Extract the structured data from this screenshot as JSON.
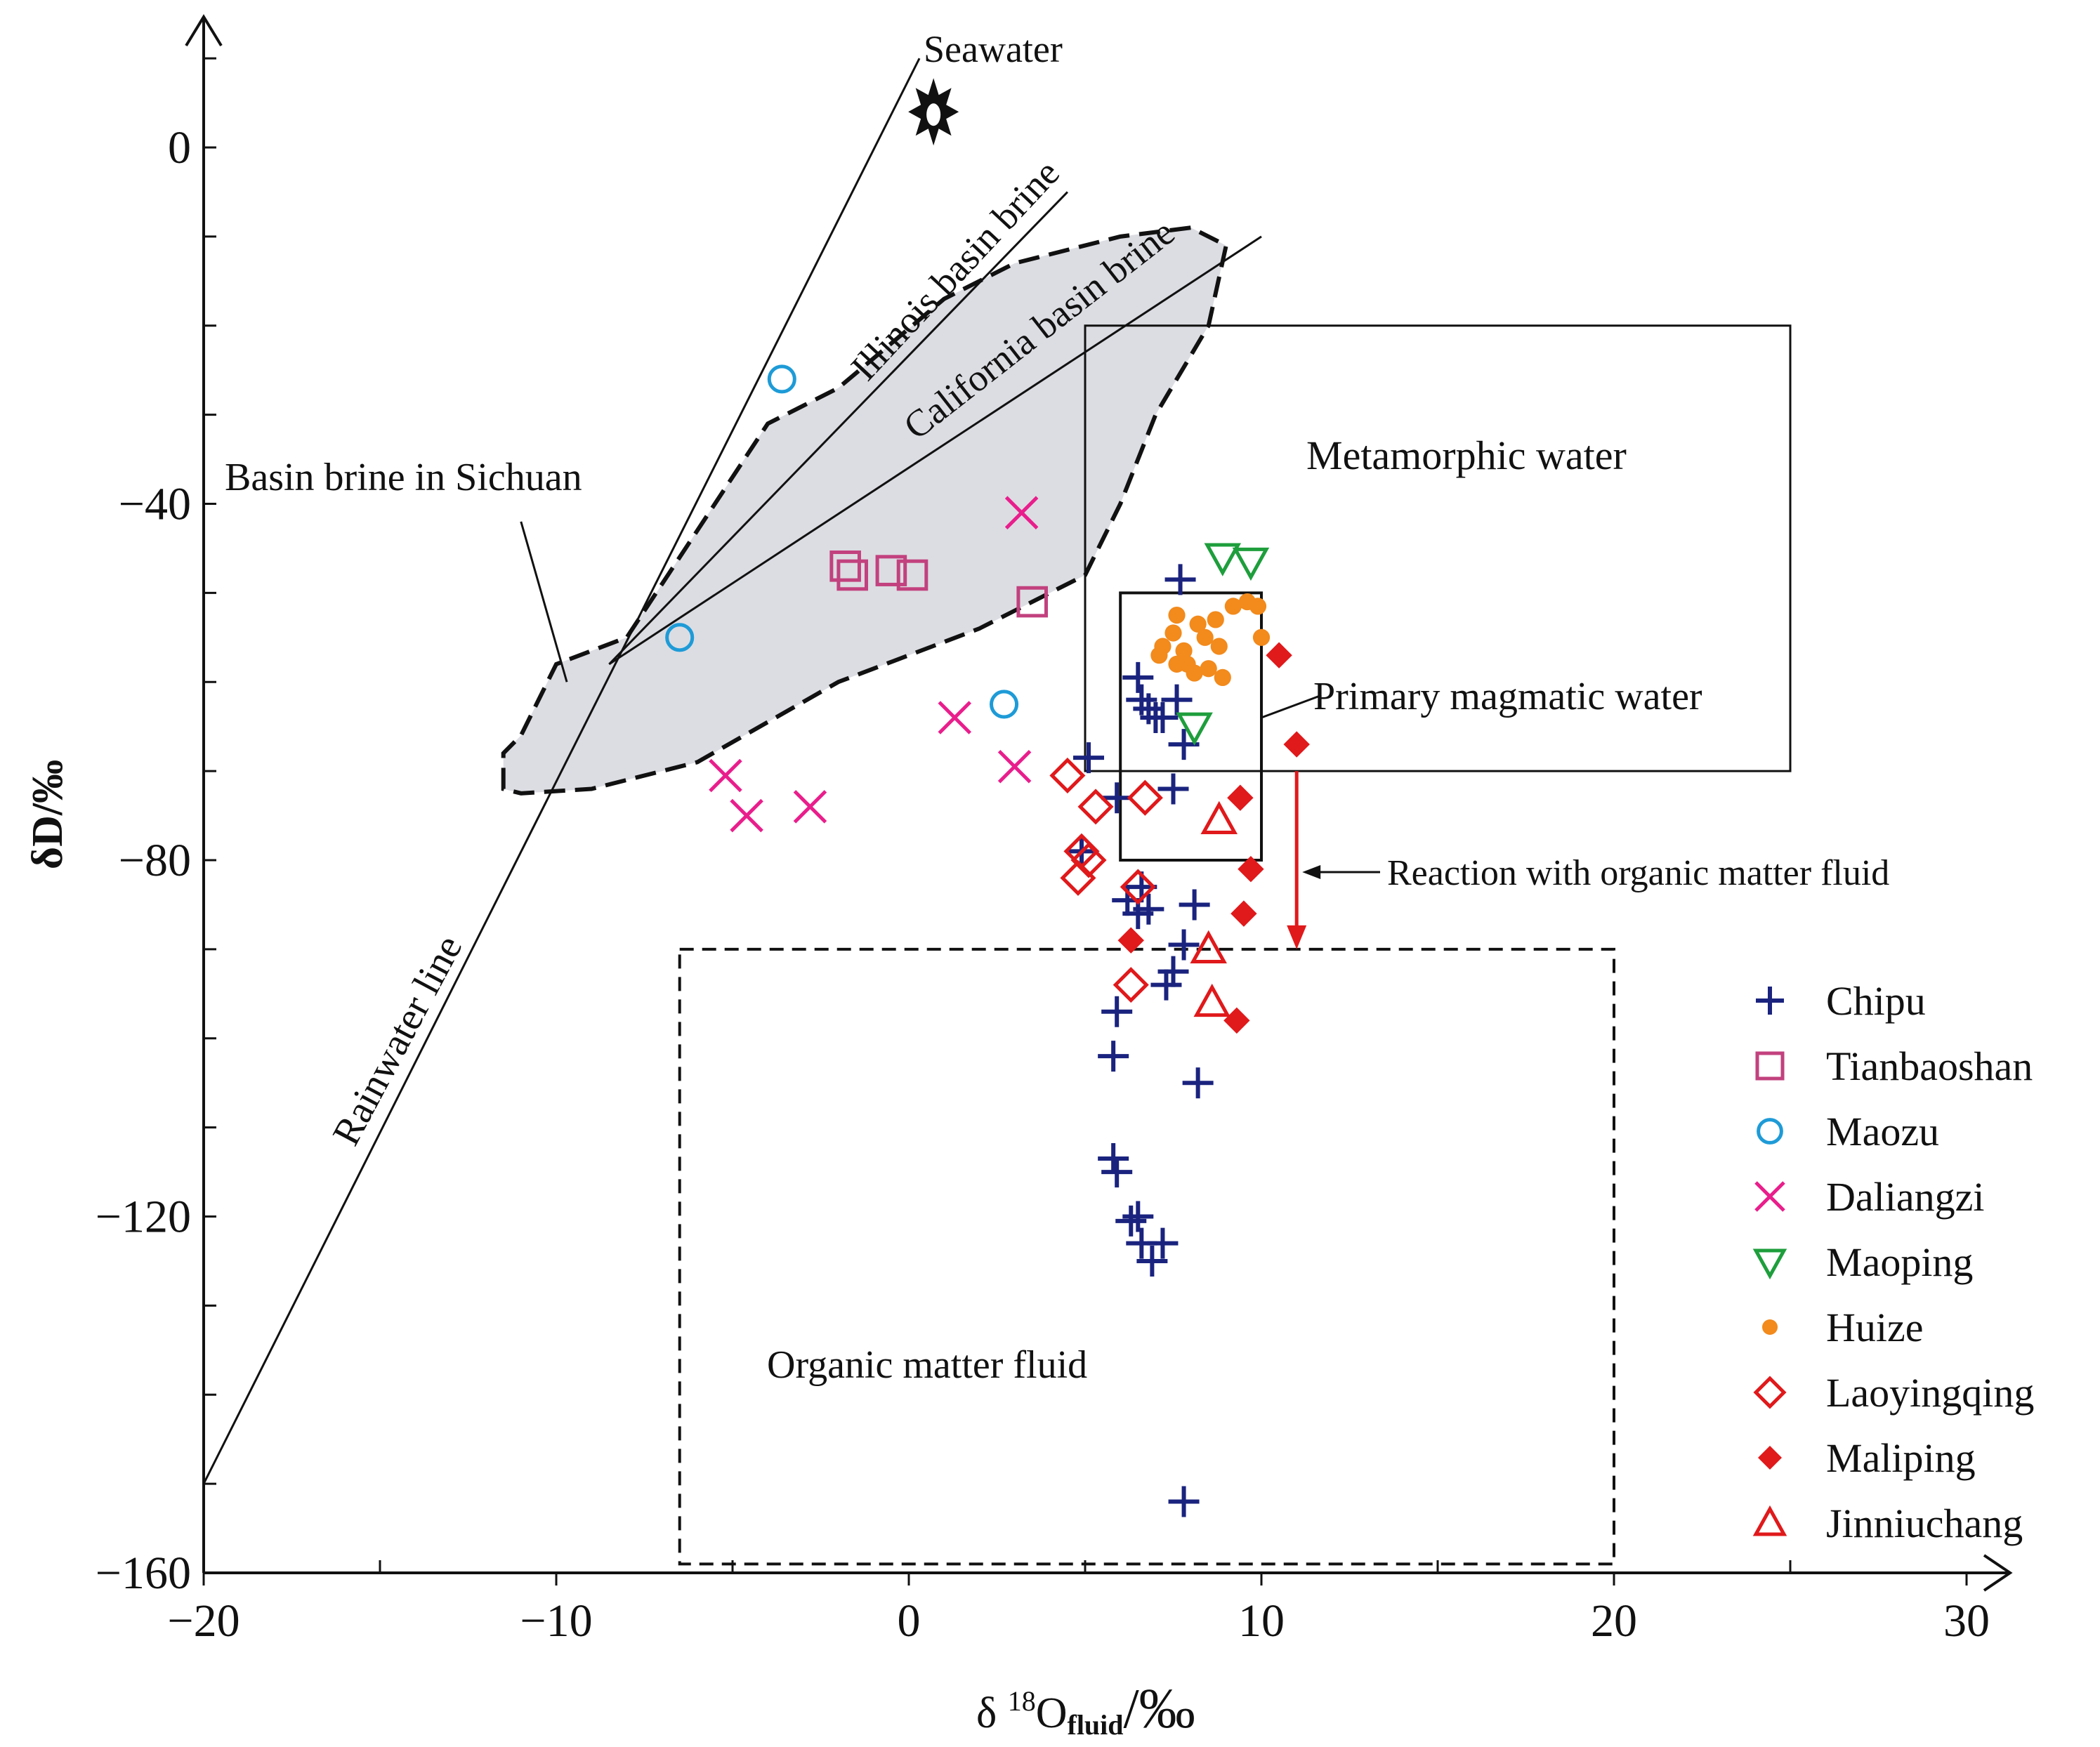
{
  "chart_data": {
    "type": "scatter",
    "title": "",
    "xlabel": {
      "prefix": "δ ",
      "sup": "18",
      "main": "O",
      "sub": "fluid",
      "unit": "/‰"
    },
    "ylabel": "δD/‰",
    "xlim": [
      -20,
      30
    ],
    "ylim": [
      -160,
      15
    ],
    "xticks": [
      -20,
      -10,
      0,
      10,
      20,
      30
    ],
    "yticks": [
      0,
      -40,
      -80,
      -120,
      -160
    ],
    "xtick_labels": [
      "−20",
      "−10",
      "0",
      "10",
      "20",
      "30"
    ],
    "ytick_labels": [
      "0",
      "−40",
      "−80",
      "−120",
      "−160"
    ],
    "annotations": {
      "seawater": "Seawater",
      "illinois": "Illinois basin brine",
      "california": "California basin brine",
      "sichuan": "Basin brine in Sichuan",
      "metamorphic": "Metamorphic water",
      "magmatic": "Primary magmatic water",
      "reaction": "Reaction with organic matter fluid",
      "organic": "Organic matter fluid",
      "rainwater": "Rainwater line"
    },
    "regions": {
      "metamorphic_box": {
        "x": [
          5,
          25
        ],
        "y": [
          -70,
          -20
        ]
      },
      "magmatic_box": {
        "x": [
          6,
          10
        ],
        "y": [
          -80,
          -50
        ]
      },
      "organic_box": {
        "x": [
          -6.5,
          20
        ],
        "y": [
          -159,
          -90
        ]
      },
      "sichuan_polygon": [
        [
          -11.5,
          -72
        ],
        [
          -11.5,
          -68
        ],
        [
          -11,
          -66
        ],
        [
          -10,
          -58
        ],
        [
          -8,
          -55
        ],
        [
          -7,
          -49
        ],
        [
          -4,
          -31
        ],
        [
          -2,
          -27
        ],
        [
          1,
          -17
        ],
        [
          3,
          -13
        ],
        [
          6,
          -10
        ],
        [
          8,
          -9
        ],
        [
          9,
          -11
        ],
        [
          8.5,
          -20
        ],
        [
          7,
          -30
        ],
        [
          6,
          -40
        ],
        [
          5,
          -48
        ],
        [
          2,
          -54
        ],
        [
          -2,
          -60
        ],
        [
          -6,
          -69
        ],
        [
          -9,
          -72
        ],
        [
          -11,
          -72.5
        ]
      ],
      "rainwater_line": [
        [
          -20,
          -150
        ],
        [
          0.3,
          10
        ]
      ],
      "illinois_line": [
        [
          -8.5,
          -58
        ],
        [
          4.5,
          -5
        ]
      ],
      "california_line": [
        [
          -8.5,
          -58
        ],
        [
          10,
          -10
        ]
      ],
      "reaction_arrow": {
        "x": 11,
        "from": -70,
        "to": -90
      }
    },
    "seawater_point": {
      "x": 0.7,
      "y": 4
    },
    "series": [
      {
        "name": "Chipu",
        "marker": "plus",
        "color": "#1a237e",
        "x": [
          7.7,
          6.5,
          6.6,
          6.8,
          7,
          7.2,
          7.6,
          7.8,
          5.1,
          5.9,
          7.5,
          4.9,
          6.6,
          6.2,
          6.5,
          6.8,
          8.1,
          7.8,
          7.5,
          7.3,
          5.9,
          5.8,
          8.2,
          5.8,
          5.9,
          6.3,
          6.5,
          7.2,
          6.6,
          6.9,
          7.8
        ],
        "y": [
          -48.5,
          -59.5,
          -62,
          -63,
          -64,
          -64,
          -62,
          -67,
          -68.5,
          -73,
          -72,
          -79,
          -83,
          -84.5,
          -86,
          -85.5,
          -85,
          -89.5,
          -92.5,
          -94,
          -97,
          -102,
          -105,
          -113.5,
          -115,
          -120.5,
          -120,
          -123,
          -123,
          -125,
          -152
        ]
      },
      {
        "name": "Tianbaoshan",
        "marker": "square",
        "color": "#c2417e",
        "x": [
          -1.8,
          -1.6,
          -0.5,
          0.1,
          3.5
        ],
        "y": [
          -47,
          -48,
          -47.5,
          -48,
          -51
        ]
      },
      {
        "name": "Maozu",
        "marker": "circle",
        "color": "#1e9bd7",
        "x": [
          -3.6,
          -6.5,
          2.7
        ],
        "y": [
          -26,
          -55,
          -62.5
        ]
      },
      {
        "name": "Daliangzi",
        "marker": "cross",
        "color": "#e91e8c",
        "x": [
          3.2,
          1.3,
          3.0,
          -5.2,
          -4.6,
          -2.8
        ],
        "y": [
          -41,
          -64,
          -69.5,
          -70.5,
          -75,
          -74
        ]
      },
      {
        "name": "Maoping",
        "marker": "triangle-down",
        "color": "#1e9e3c",
        "x": [
          8.9,
          9.7,
          8.1
        ],
        "y": [
          -46,
          -46.5,
          -65
        ]
      },
      {
        "name": "Huize",
        "marker": "dot",
        "color": "#f28a1c",
        "x": [
          7.6,
          8.2,
          8.7,
          9.2,
          9.6,
          9.9,
          7.2,
          7.5,
          7.8,
          8.4,
          8.8,
          7.1,
          7.9,
          8.5,
          7.6,
          8.1,
          10.0,
          8.9
        ],
        "y": [
          -52.5,
          -53.5,
          -53,
          -51.5,
          -51,
          -51.5,
          -56,
          -54.5,
          -56.5,
          -55,
          -56,
          -57,
          -58,
          -58.5,
          -58,
          -59,
          -55,
          -59.5
        ]
      },
      {
        "name": "Laoyingqing",
        "marker": "diamond",
        "color": "#e0191b",
        "x": [
          4.5,
          5.3,
          6.7,
          4.9,
          5.1,
          4.8,
          6.5,
          6.3
        ],
        "y": [
          -70.5,
          -74,
          -73,
          -79,
          -80,
          -82,
          -83,
          -94
        ]
      },
      {
        "name": "Maliping",
        "marker": "diamond-filled",
        "color": "#e0191b",
        "x": [
          10.5,
          11.0,
          9.4,
          9.7,
          9.5,
          6.3,
          9.3
        ],
        "y": [
          -57,
          -67,
          -73,
          -81,
          -86,
          -89,
          -98
        ]
      },
      {
        "name": "Jinniuchang",
        "marker": "triangle-up",
        "color": "#e0191b",
        "x": [
          8.8,
          8.5,
          8.6
        ],
        "y": [
          -75.5,
          -90,
          -96
        ]
      }
    ]
  }
}
